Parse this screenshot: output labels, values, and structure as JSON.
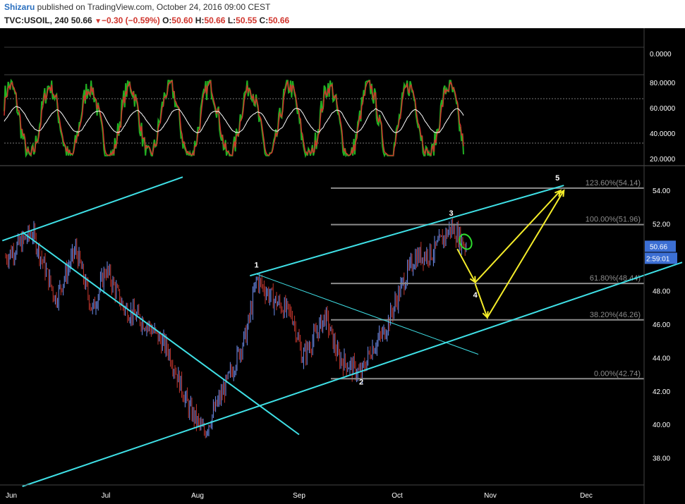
{
  "header": {
    "author": "Shizaru",
    "published_text": " published on TradingView.com, October 24, 2016 09:00 CEST",
    "symbol": "TVC:USOIL, 240",
    "last": "50.66",
    "change_arrow": "▼",
    "change": "−0.30 (−0.59%)",
    "o_label": "O:",
    "o_value": "50.60",
    "h_label": "H:",
    "h_value": "50.66",
    "l_label": "L:",
    "l_value": "50.55",
    "c_label": "C:",
    "c_value": "50.66"
  },
  "colors": {
    "background": "#000000",
    "candle_up": "#6f8ff0",
    "candle_down": "#c2352c",
    "trendline": "#3fe0e6",
    "projection": "#f4ec2a",
    "fib_line": "#8c8c8c",
    "osc_fast": "#22b022",
    "osc_slow": "#d0342c",
    "osc_signal": "#ffffff",
    "price_badge": "#3c6fd4",
    "circle": "#2edb2e"
  },
  "oscillator": {
    "axis_labels": [
      "0.0000",
      "80.0000",
      "60.0000",
      "40.0000",
      "20.0000"
    ]
  },
  "chart_data": {
    "type": "candlestick",
    "symbol": "TVC:USOIL",
    "interval": "240",
    "x_ticks": [
      "Jun",
      "Jul",
      "Aug",
      "Sep",
      "Oct",
      "Nov",
      "Dec"
    ],
    "y_ticks": [
      "54.00",
      "52.00",
      "50.00",
      "48.00",
      "46.00",
      "44.00",
      "42.00",
      "40.00",
      "38.00"
    ],
    "ylim": [
      36.3,
      55.4
    ],
    "last_price": "50.66",
    "countdown": "2:59:01",
    "price_path": [
      [
        "2016-06-01",
        50.0
      ],
      [
        "2016-06-09",
        51.5
      ],
      [
        "2016-06-16",
        47.5
      ],
      [
        "2016-06-22",
        50.5
      ],
      [
        "2016-06-27",
        46.8
      ],
      [
        "2016-07-01",
        49.3
      ],
      [
        "2016-07-07",
        47.0
      ],
      [
        "2016-07-15",
        46.0
      ],
      [
        "2016-07-22",
        44.5
      ],
      [
        "2016-07-29",
        41.0
      ],
      [
        "2016-08-03",
        39.5
      ],
      [
        "2016-08-10",
        42.5
      ],
      [
        "2016-08-16",
        45.5
      ],
      [
        "2016-08-19",
        48.7
      ],
      [
        "2016-08-24",
        47.5
      ],
      [
        "2016-08-30",
        46.5
      ],
      [
        "2016-09-02",
        44.0
      ],
      [
        "2016-09-05",
        45.0
      ],
      [
        "2016-09-09",
        46.5
      ],
      [
        "2016-09-13",
        44.0
      ],
      [
        "2016-09-20",
        43.0
      ],
      [
        "2016-09-23",
        44.5
      ],
      [
        "2016-09-27",
        45.5
      ],
      [
        "2016-10-03",
        48.5
      ],
      [
        "2016-10-07",
        50.0
      ],
      [
        "2016-10-13",
        50.3
      ],
      [
        "2016-10-19",
        51.8
      ],
      [
        "2016-10-24",
        50.66
      ]
    ],
    "fib_levels": [
      {
        "label": "123.60%(54.14)",
        "value": 54.14
      },
      {
        "label": "100.00%(51.96)",
        "value": 51.96
      },
      {
        "label": "61.80%(48.44)",
        "value": 48.44
      },
      {
        "label": "38.20%(46.26)",
        "value": 46.26
      },
      {
        "label": "0.00%(42.74)",
        "value": 42.74
      }
    ],
    "wave_labels": [
      {
        "label": "1",
        "date": "2016-08-19",
        "price": 49.4
      },
      {
        "label": "2",
        "date": "2016-09-20",
        "price": 42.4
      },
      {
        "label": "3",
        "date": "2016-10-19",
        "price": 52.5
      },
      {
        "label": "4",
        "date": "2016-10-27",
        "price": 47.6
      },
      {
        "label": "5",
        "date": "2016-11-22",
        "price": 54.6
      }
    ],
    "trend_lines": [
      {
        "from": [
          "2016-05-31",
          51.0
        ],
        "to": [
          "2016-07-27",
          54.8
        ]
      },
      {
        "from": [
          "2016-06-06",
          51.5
        ],
        "to": [
          "2016-09-01",
          39.4
        ]
      },
      {
        "from": [
          "2016-06-06",
          36.3
        ],
        "to": [
          "2016-12-31",
          49.7
        ]
      },
      {
        "from": [
          "2016-08-17",
          48.9
        ],
        "to": [
          "2016-11-24",
          54.3
        ]
      },
      {
        "from": [
          "2016-08-19",
          49.0
        ],
        "to": [
          "2016-10-28",
          44.2
        ]
      }
    ],
    "projection_path_a": [
      [
        "2016-10-21",
        50.5
      ],
      [
        "2016-10-27",
        48.5
      ],
      [
        "2016-11-23",
        54.0
      ]
    ],
    "projection_path_b": [
      [
        "2016-10-27",
        48.4
      ],
      [
        "2016-10-31",
        46.4
      ],
      [
        "2016-11-24",
        54.0
      ]
    ]
  }
}
